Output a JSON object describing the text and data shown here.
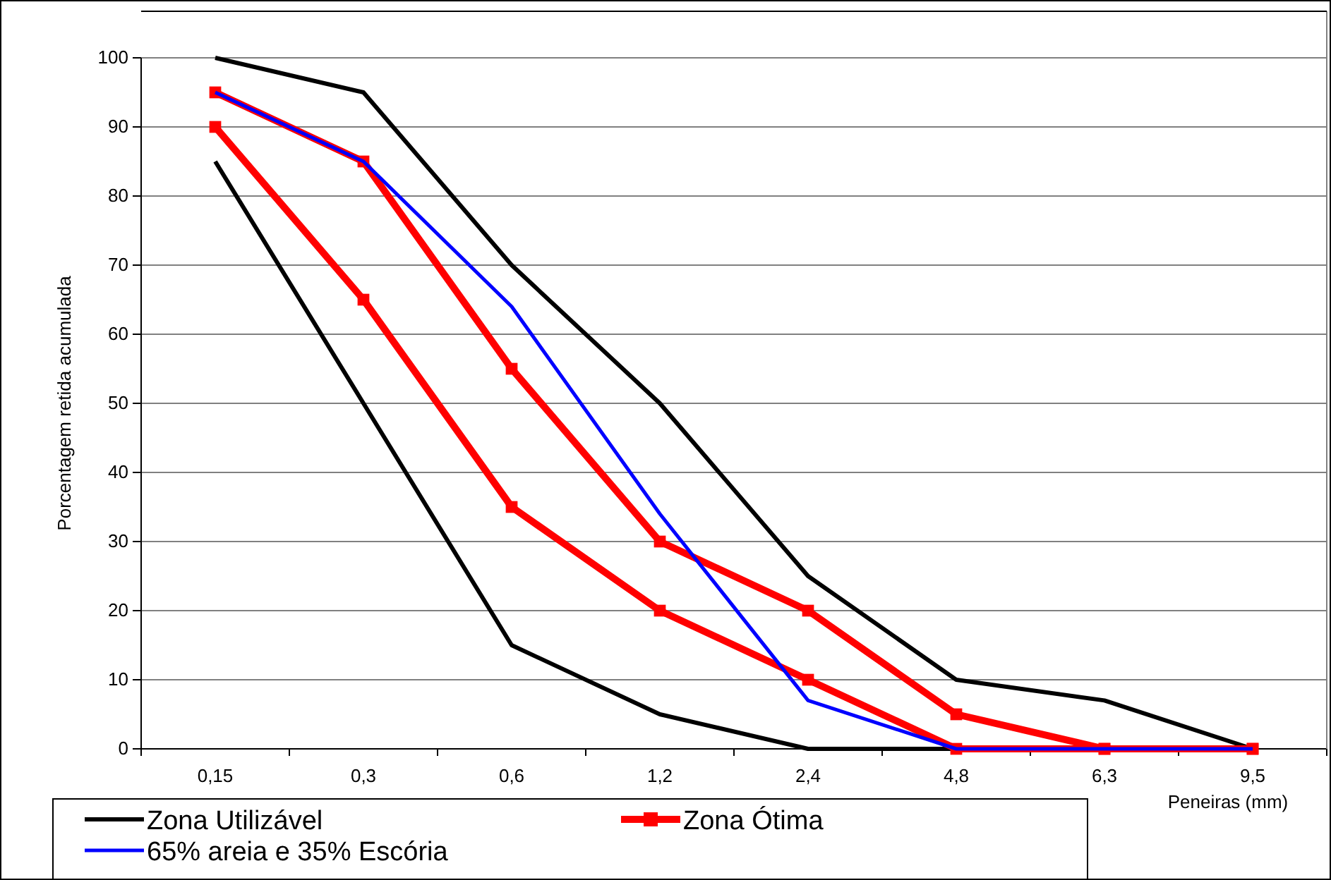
{
  "chart_data": {
    "type": "line",
    "categories": [
      "0,15",
      "0,3",
      "0,6",
      "1,2",
      "2,4",
      "4,8",
      "6,3",
      "9,5"
    ],
    "xlabel": "Peneiras (mm)",
    "ylabel": "Porcentagem retida acumulada",
    "ylim": [
      0,
      100
    ],
    "yticks": [
      0,
      10,
      20,
      30,
      40,
      50,
      60,
      70,
      80,
      90,
      100
    ],
    "grid": "y",
    "legend": "bottom",
    "line_style": "solid",
    "series": [
      {
        "name": "Zona Utilizável",
        "color": "#000000",
        "marker": "none",
        "values": [
          100,
          95,
          70,
          50,
          25,
          10,
          7,
          0
        ]
      },
      {
        "color": "#000000",
        "marker": "none",
        "values": [
          85,
          50,
          15,
          5,
          0,
          0,
          0,
          0
        ]
      },
      {
        "name": "Zona Ótima",
        "color": "#ff0000",
        "marker": "square",
        "values": [
          95,
          85,
          55,
          30,
          20,
          5,
          0,
          0
        ]
      },
      {
        "color": "#ff0000",
        "marker": "square",
        "values": [
          90,
          65,
          35,
          20,
          10,
          0,
          0,
          0
        ]
      },
      {
        "name": "65% areia e 35% Escória",
        "color": "#0000ff",
        "marker": "none",
        "values": [
          95,
          85,
          64,
          34,
          7,
          0,
          0,
          0
        ]
      }
    ]
  }
}
